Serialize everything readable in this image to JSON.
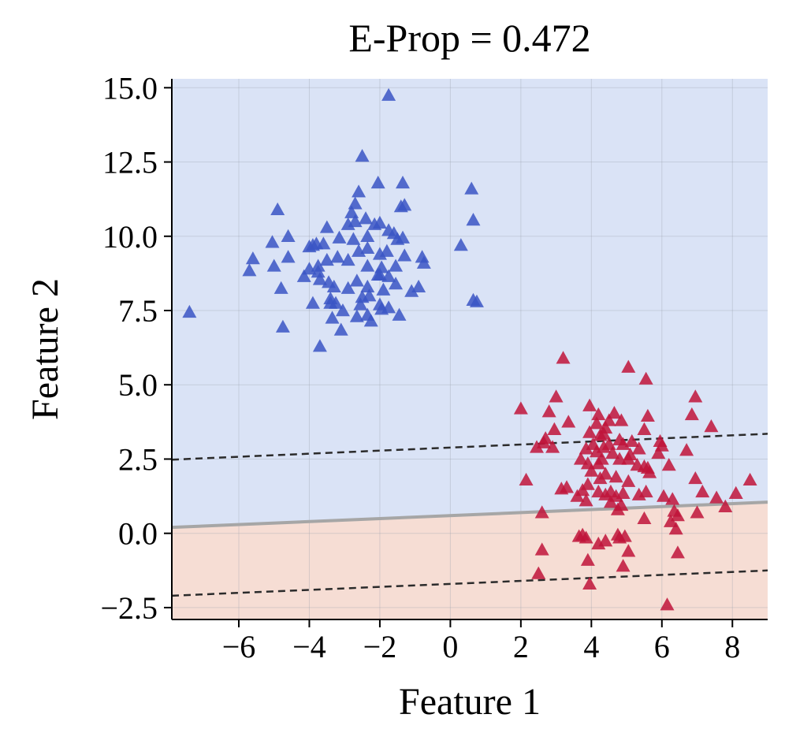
{
  "chart_data": {
    "type": "scatter",
    "title": "E-Prop = 0.472",
    "xlabel": "Feature 1",
    "ylabel": "Feature 2",
    "xlim": [
      -7.9,
      9.0
    ],
    "ylim": [
      -2.9,
      15.3
    ],
    "xticks": [
      -6,
      -4,
      -2,
      0,
      2,
      4,
      6,
      8
    ],
    "xtick_labels": [
      "−6",
      "−4",
      "−2",
      "0",
      "2",
      "4",
      "6",
      "8"
    ],
    "yticks": [
      -2.5,
      0.0,
      2.5,
      5.0,
      7.5,
      10.0,
      12.5,
      15.0
    ],
    "ytick_labels": [
      "−2.5",
      "0.0",
      "2.5",
      "5.0",
      "7.5",
      "10.0",
      "12.5",
      "15.0"
    ],
    "grid": true,
    "colors": {
      "class_0_marker": "#3a55c4",
      "class_1_marker": "#c0143a",
      "region_0": "#dae3f6",
      "region_1": "#f6ddd4",
      "boundary": "#a6a6a6",
      "margin": "#2b2b2b",
      "grid": "#9aa0ac"
    },
    "decision_boundary": {
      "x": [
        -7.9,
        9.0
      ],
      "y": [
        0.2,
        1.05
      ]
    },
    "margin_lines": [
      {
        "name": "upper-margin",
        "x": [
          -7.9,
          9.0
        ],
        "y": [
          2.48,
          3.35
        ]
      },
      {
        "name": "lower-margin",
        "x": [
          -7.9,
          9.0
        ],
        "y": [
          -2.1,
          -1.25
        ]
      }
    ],
    "series": [
      {
        "name": "class 0",
        "marker": "triangle",
        "points": [
          [
            -1.75,
            14.75
          ],
          [
            -2.5,
            12.7
          ],
          [
            -2.05,
            11.8
          ],
          [
            -1.35,
            11.8
          ],
          [
            -2.6,
            11.5
          ],
          [
            -2.7,
            11.1
          ],
          [
            -1.4,
            11.0
          ],
          [
            -1.3,
            11.05
          ],
          [
            0.6,
            11.6
          ],
          [
            -4.9,
            10.9
          ],
          [
            -2.8,
            10.8
          ],
          [
            -2.4,
            10.6
          ],
          [
            -2.15,
            10.4
          ],
          [
            -2.9,
            10.4
          ],
          [
            0.65,
            10.55
          ],
          [
            -2.7,
            10.5
          ],
          [
            -2.0,
            10.45
          ],
          [
            -3.5,
            10.3
          ],
          [
            -1.75,
            10.2
          ],
          [
            -1.6,
            10.1
          ],
          [
            -1.5,
            9.9
          ],
          [
            -1.35,
            9.95
          ],
          [
            -2.35,
            10.0
          ],
          [
            -3.15,
            9.95
          ],
          [
            -2.75,
            9.9
          ],
          [
            -4.6,
            10.0
          ],
          [
            -5.05,
            9.8
          ],
          [
            -3.8,
            9.75
          ],
          [
            -3.9,
            9.7
          ],
          [
            -4.0,
            9.65
          ],
          [
            -3.6,
            9.75
          ],
          [
            -2.35,
            9.6
          ],
          [
            -2.6,
            9.5
          ],
          [
            -2.0,
            9.4
          ],
          [
            -1.8,
            9.5
          ],
          [
            0.3,
            9.7
          ],
          [
            -0.8,
            9.3
          ],
          [
            -0.75,
            9.1
          ],
          [
            -5.6,
            9.25
          ],
          [
            -4.6,
            9.3
          ],
          [
            -3.5,
            9.2
          ],
          [
            -3.2,
            9.3
          ],
          [
            -2.9,
            9.2
          ],
          [
            -1.3,
            9.35
          ],
          [
            -5.0,
            9.0
          ],
          [
            -3.75,
            9.0
          ],
          [
            -2.35,
            9.0
          ],
          [
            -1.95,
            8.95
          ],
          [
            -1.55,
            9.0
          ],
          [
            -2.0,
            8.7
          ],
          [
            -4.0,
            8.9
          ],
          [
            -3.75,
            8.8
          ],
          [
            -2.05,
            8.7
          ],
          [
            -1.75,
            8.65
          ],
          [
            -4.15,
            8.65
          ],
          [
            -5.7,
            8.85
          ],
          [
            -3.7,
            8.55
          ],
          [
            -3.45,
            8.45
          ],
          [
            -2.65,
            8.5
          ],
          [
            -1.55,
            8.4
          ],
          [
            -4.8,
            8.25
          ],
          [
            -3.3,
            8.3
          ],
          [
            -2.9,
            8.25
          ],
          [
            -2.35,
            8.3
          ],
          [
            -1.9,
            8.2
          ],
          [
            -0.9,
            8.3
          ],
          [
            -1.1,
            8.15
          ],
          [
            -2.3,
            8.0
          ],
          [
            -2.5,
            7.95
          ],
          [
            -3.4,
            7.9
          ],
          [
            -3.9,
            7.75
          ],
          [
            -3.4,
            7.75
          ],
          [
            -3.25,
            7.75
          ],
          [
            -2.0,
            7.7
          ],
          [
            -1.95,
            7.55
          ],
          [
            -1.75,
            7.6
          ],
          [
            -2.55,
            7.7
          ],
          [
            -3.05,
            7.5
          ],
          [
            -1.45,
            7.35
          ],
          [
            -2.35,
            7.35
          ],
          [
            -3.35,
            7.25
          ],
          [
            -2.65,
            7.3
          ],
          [
            -2.25,
            7.15
          ],
          [
            0.65,
            7.85
          ],
          [
            0.75,
            7.8
          ],
          [
            -3.1,
            6.85
          ],
          [
            -4.75,
            6.95
          ],
          [
            -3.7,
            6.3
          ],
          [
            -7.4,
            7.45
          ]
        ]
      },
      {
        "name": "class 1",
        "marker": "triangle",
        "points": [
          [
            3.2,
            5.9
          ],
          [
            5.05,
            5.6
          ],
          [
            5.55,
            5.2
          ],
          [
            3.0,
            4.6
          ],
          [
            6.95,
            4.6
          ],
          [
            2.0,
            4.2
          ],
          [
            2.8,
            4.1
          ],
          [
            3.95,
            4.3
          ],
          [
            4.2,
            4.0
          ],
          [
            4.65,
            4.05
          ],
          [
            4.5,
            3.8
          ],
          [
            4.85,
            3.8
          ],
          [
            5.6,
            3.95
          ],
          [
            6.85,
            4.0
          ],
          [
            3.35,
            3.75
          ],
          [
            4.15,
            3.7
          ],
          [
            4.4,
            3.55
          ],
          [
            2.95,
            3.5
          ],
          [
            5.5,
            3.5
          ],
          [
            7.4,
            3.6
          ],
          [
            3.95,
            3.4
          ],
          [
            4.25,
            3.3
          ],
          [
            4.35,
            3.35
          ],
          [
            4.8,
            3.15
          ],
          [
            5.15,
            3.1
          ],
          [
            5.95,
            3.1
          ],
          [
            2.7,
            3.2
          ],
          [
            2.65,
            3.05
          ],
          [
            4.05,
            3.0
          ],
          [
            4.5,
            3.0
          ],
          [
            4.9,
            3.0
          ],
          [
            6.0,
            2.95
          ],
          [
            2.45,
            2.9
          ],
          [
            3.85,
            2.85
          ],
          [
            4.35,
            2.9
          ],
          [
            5.35,
            2.85
          ],
          [
            6.7,
            2.8
          ],
          [
            2.9,
            2.9
          ],
          [
            4.15,
            2.75
          ],
          [
            4.6,
            2.7
          ],
          [
            5.1,
            2.65
          ],
          [
            5.9,
            2.7
          ],
          [
            3.7,
            2.5
          ],
          [
            4.3,
            2.5
          ],
          [
            4.8,
            2.5
          ],
          [
            5.05,
            2.5
          ],
          [
            3.9,
            2.35
          ],
          [
            4.2,
            2.35
          ],
          [
            5.3,
            2.3
          ],
          [
            5.5,
            2.25
          ],
          [
            5.6,
            2.2
          ],
          [
            6.2,
            2.3
          ],
          [
            4.0,
            2.1
          ],
          [
            4.4,
            2.0
          ],
          [
            5.65,
            2.05
          ],
          [
            4.25,
            1.85
          ],
          [
            4.7,
            1.9
          ],
          [
            6.95,
            1.85
          ],
          [
            8.5,
            1.8
          ],
          [
            2.15,
            1.8
          ],
          [
            3.9,
            1.65
          ],
          [
            5.05,
            1.75
          ],
          [
            3.15,
            1.5
          ],
          [
            3.3,
            1.55
          ],
          [
            3.75,
            1.45
          ],
          [
            4.55,
            1.4
          ],
          [
            4.2,
            1.4
          ],
          [
            4.9,
            1.35
          ],
          [
            5.55,
            1.4
          ],
          [
            7.15,
            1.4
          ],
          [
            8.1,
            1.35
          ],
          [
            3.6,
            1.25
          ],
          [
            3.85,
            1.1
          ],
          [
            4.4,
            1.3
          ],
          [
            4.7,
            1.25
          ],
          [
            5.35,
            1.3
          ],
          [
            6.05,
            1.25
          ],
          [
            6.3,
            1.15
          ],
          [
            7.55,
            1.2
          ],
          [
            4.55,
            1.05
          ],
          [
            4.85,
            0.95
          ],
          [
            6.35,
            0.75
          ],
          [
            6.45,
            0.6
          ],
          [
            7.0,
            0.7
          ],
          [
            7.8,
            0.9
          ],
          [
            2.6,
            0.7
          ],
          [
            4.75,
            0.8
          ],
          [
            5.5,
            0.5
          ],
          [
            6.25,
            0.4
          ],
          [
            6.4,
            0.15
          ],
          [
            3.65,
            -0.1
          ],
          [
            3.75,
            -0.05
          ],
          [
            3.85,
            -0.15
          ],
          [
            4.75,
            -0.05
          ],
          [
            4.8,
            -0.15
          ],
          [
            4.4,
            -0.25
          ],
          [
            4.95,
            -0.1
          ],
          [
            4.2,
            -0.35
          ],
          [
            2.6,
            -0.55
          ],
          [
            5.05,
            -0.6
          ],
          [
            6.45,
            -0.65
          ],
          [
            3.9,
            -0.9
          ],
          [
            4.9,
            -1.1
          ],
          [
            2.5,
            -1.35
          ],
          [
            3.95,
            -1.7
          ],
          [
            6.15,
            -2.4
          ]
        ]
      }
    ]
  }
}
